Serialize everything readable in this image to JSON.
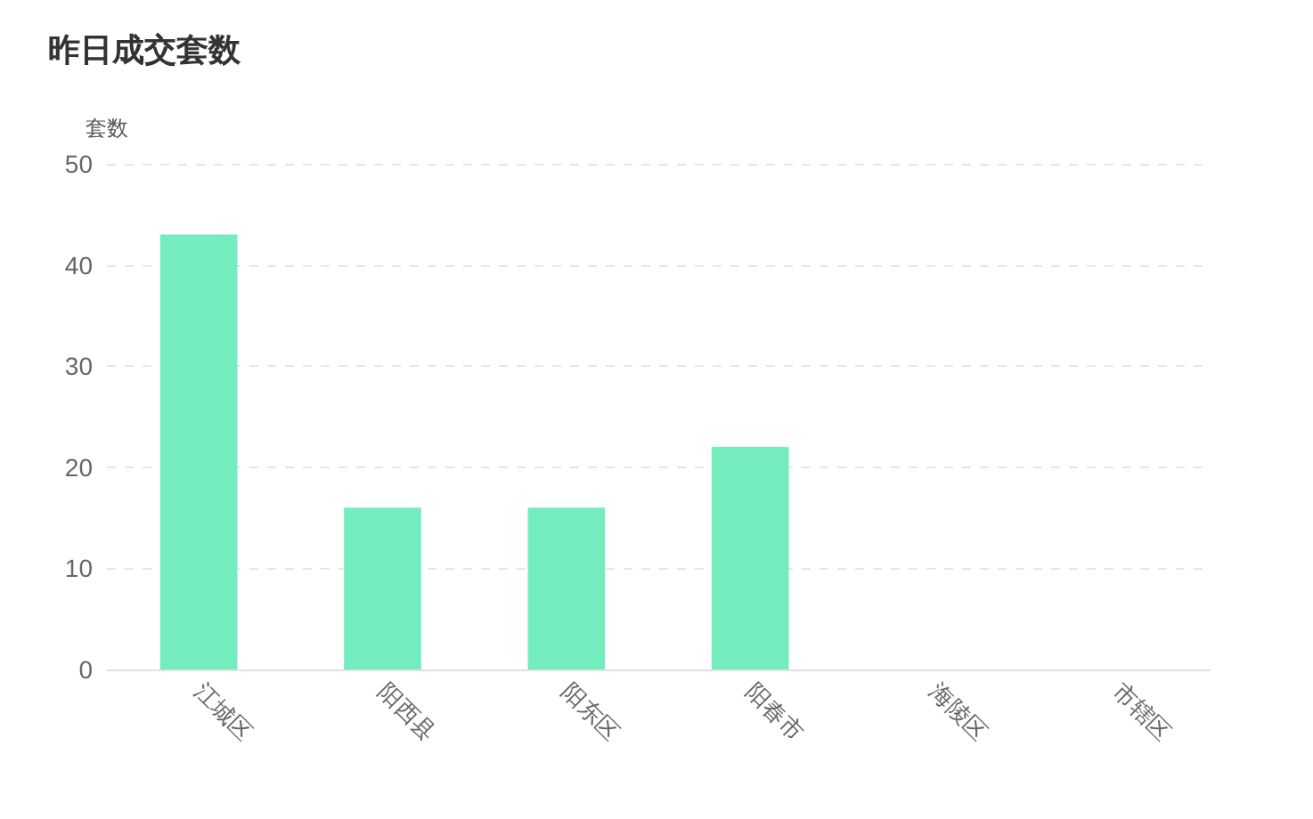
{
  "chart_data": {
    "type": "bar",
    "title": "昨日成交套数",
    "ylabel": "套数",
    "categories": [
      "江城区",
      "阳西县",
      "阳东区",
      "阳春市",
      "海陵区",
      "市辖区"
    ],
    "values": [
      43,
      16,
      16,
      22,
      0,
      0
    ],
    "color": "#73edbe",
    "ylim": [
      0,
      50
    ],
    "yticks": [
      0,
      10,
      20,
      30,
      40,
      50
    ],
    "grid": "y"
  }
}
